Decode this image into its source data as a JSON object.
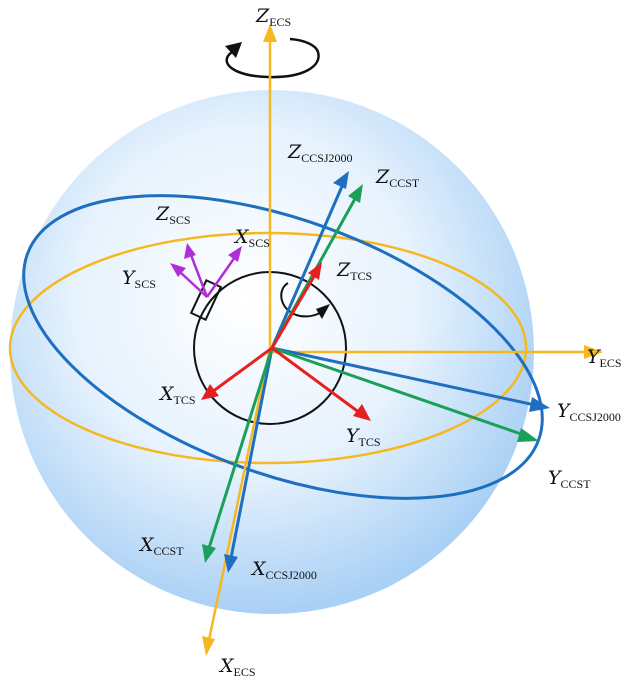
{
  "colors": {
    "ecs": "#f5b820",
    "ccsj2000": "#1f6fc0",
    "ccst": "#1aa05a",
    "tcs": "#e81f1f",
    "scs": "#b12ed6",
    "rotation": "#111111",
    "sphere_center": "#ffffff",
    "sphere_edge": "#a9d0f5"
  },
  "labels": {
    "z_ecs": {
      "main": "Z",
      "sub": "ECS"
    },
    "y_ecs": {
      "main": "Y",
      "sub": "ECS"
    },
    "x_ecs": {
      "main": "X",
      "sub": "ECS"
    },
    "z_ccsj2000": {
      "main": "Z",
      "sub": "CCSJ2000"
    },
    "y_ccsj2000": {
      "main": "Y",
      "sub": "CCSJ2000"
    },
    "x_ccsj2000": {
      "main": "X",
      "sub": "CCSJ2000"
    },
    "z_ccst": {
      "main": "Z",
      "sub": "CCST"
    },
    "y_ccst": {
      "main": "Y",
      "sub": "CCST"
    },
    "x_ccst": {
      "main": "X",
      "sub": "CCST"
    },
    "z_tcs": {
      "main": "Z",
      "sub": "TCS"
    },
    "x_tcs": {
      "main": "X",
      "sub": "TCS"
    },
    "y_tcs": {
      "main": "Y",
      "sub": "TCS"
    },
    "z_scs": {
      "main": "Z",
      "sub": "SCS"
    },
    "x_scs": {
      "main": "X",
      "sub": "SCS"
    },
    "y_scs": {
      "main": "Y",
      "sub": "SCS"
    }
  }
}
